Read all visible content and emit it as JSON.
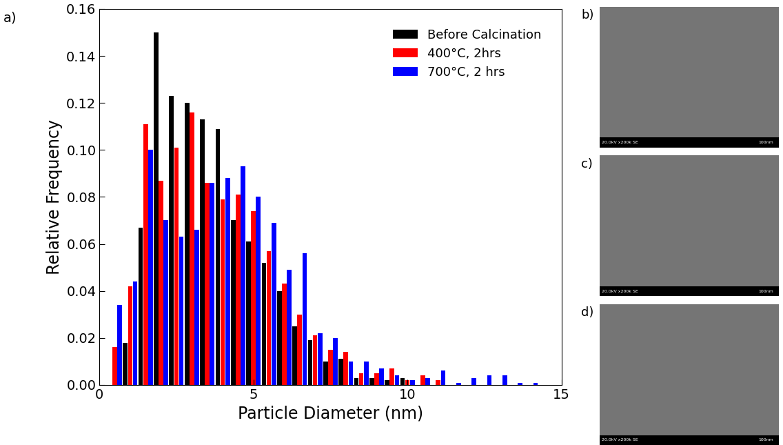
{
  "chart_data": {
    "type": "bar",
    "annotations": [
      "a)"
    ],
    "x_label": "Particle Diameter (nm)",
    "y_label": "Relative Frequency",
    "x": [
      0.5,
      1.0,
      1.5,
      2.0,
      2.5,
      3.0,
      3.5,
      4.0,
      4.5,
      5.0,
      5.5,
      6.0,
      6.5,
      7.0,
      7.5,
      8.0,
      8.5,
      9.0,
      9.5,
      10.0,
      10.5,
      11.0,
      11.5,
      12.0,
      12.5,
      13.0,
      13.5,
      14.0
    ],
    "series": [
      {
        "name": "Before Calcination",
        "color": "#000000",
        "values": [
          0,
          0.018,
          0.067,
          0.15,
          0.123,
          0.12,
          0.113,
          0.109,
          0.07,
          0.061,
          0.052,
          0.04,
          0.025,
          0.019,
          0.01,
          0.011,
          0.003,
          0.003,
          0.002,
          0.003,
          0,
          0,
          0,
          0,
          0,
          0,
          0,
          0
        ]
      },
      {
        "name": "400°C, 2hrs",
        "color": "#ff0000",
        "values": [
          0.016,
          0.042,
          0.111,
          0.087,
          0.101,
          0.116,
          0.086,
          0.079,
          0.081,
          0.074,
          0.057,
          0.043,
          0.03,
          0.021,
          0.015,
          0.014,
          0.005,
          0.005,
          0.007,
          0.002,
          0.004,
          0.002,
          0,
          0,
          0,
          0,
          0,
          0
        ]
      },
      {
        "name": "700°C, 2 hrs",
        "color": "#0000ff",
        "values": [
          0.034,
          0.044,
          0.1,
          0.07,
          0.063,
          0.066,
          0.086,
          0.088,
          0.093,
          0.08,
          0.069,
          0.049,
          0.056,
          0.022,
          0.02,
          0.01,
          0.01,
          0.007,
          0.004,
          0.002,
          0.003,
          0.006,
          0.001,
          0.003,
          0.004,
          0.004,
          0.001,
          0.001
        ]
      }
    ],
    "xlim": [
      0,
      15
    ],
    "xticks": [
      0,
      5,
      10,
      15
    ],
    "ylim": [
      0,
      0.16
    ],
    "yticks": [
      {
        "value": 0,
        "label": "0.00"
      },
      {
        "value": 0.02,
        "label": "0.02"
      },
      {
        "value": 0.04,
        "label": "0.04"
      },
      {
        "value": 0.06,
        "label": "0.06"
      },
      {
        "value": 0.08,
        "label": "0.08"
      },
      {
        "value": 0.1,
        "label": "0.10"
      },
      {
        "value": 0.12,
        "label": "0.12"
      },
      {
        "value": 0.14,
        "label": "0.14"
      },
      {
        "value": 0.16,
        "label": "0.16"
      }
    ],
    "legend": "upper right",
    "grid": false
  },
  "images": [
    {
      "label": "b)",
      "caption": "20.0kV x200k SE",
      "scale_bar": "100nm"
    },
    {
      "label": "c)",
      "caption": "20.0kV x200k SE",
      "scale_bar": "100nm"
    },
    {
      "label": "d)",
      "caption": "20.0kV x200k SE",
      "scale_bar": "100nm"
    }
  ]
}
